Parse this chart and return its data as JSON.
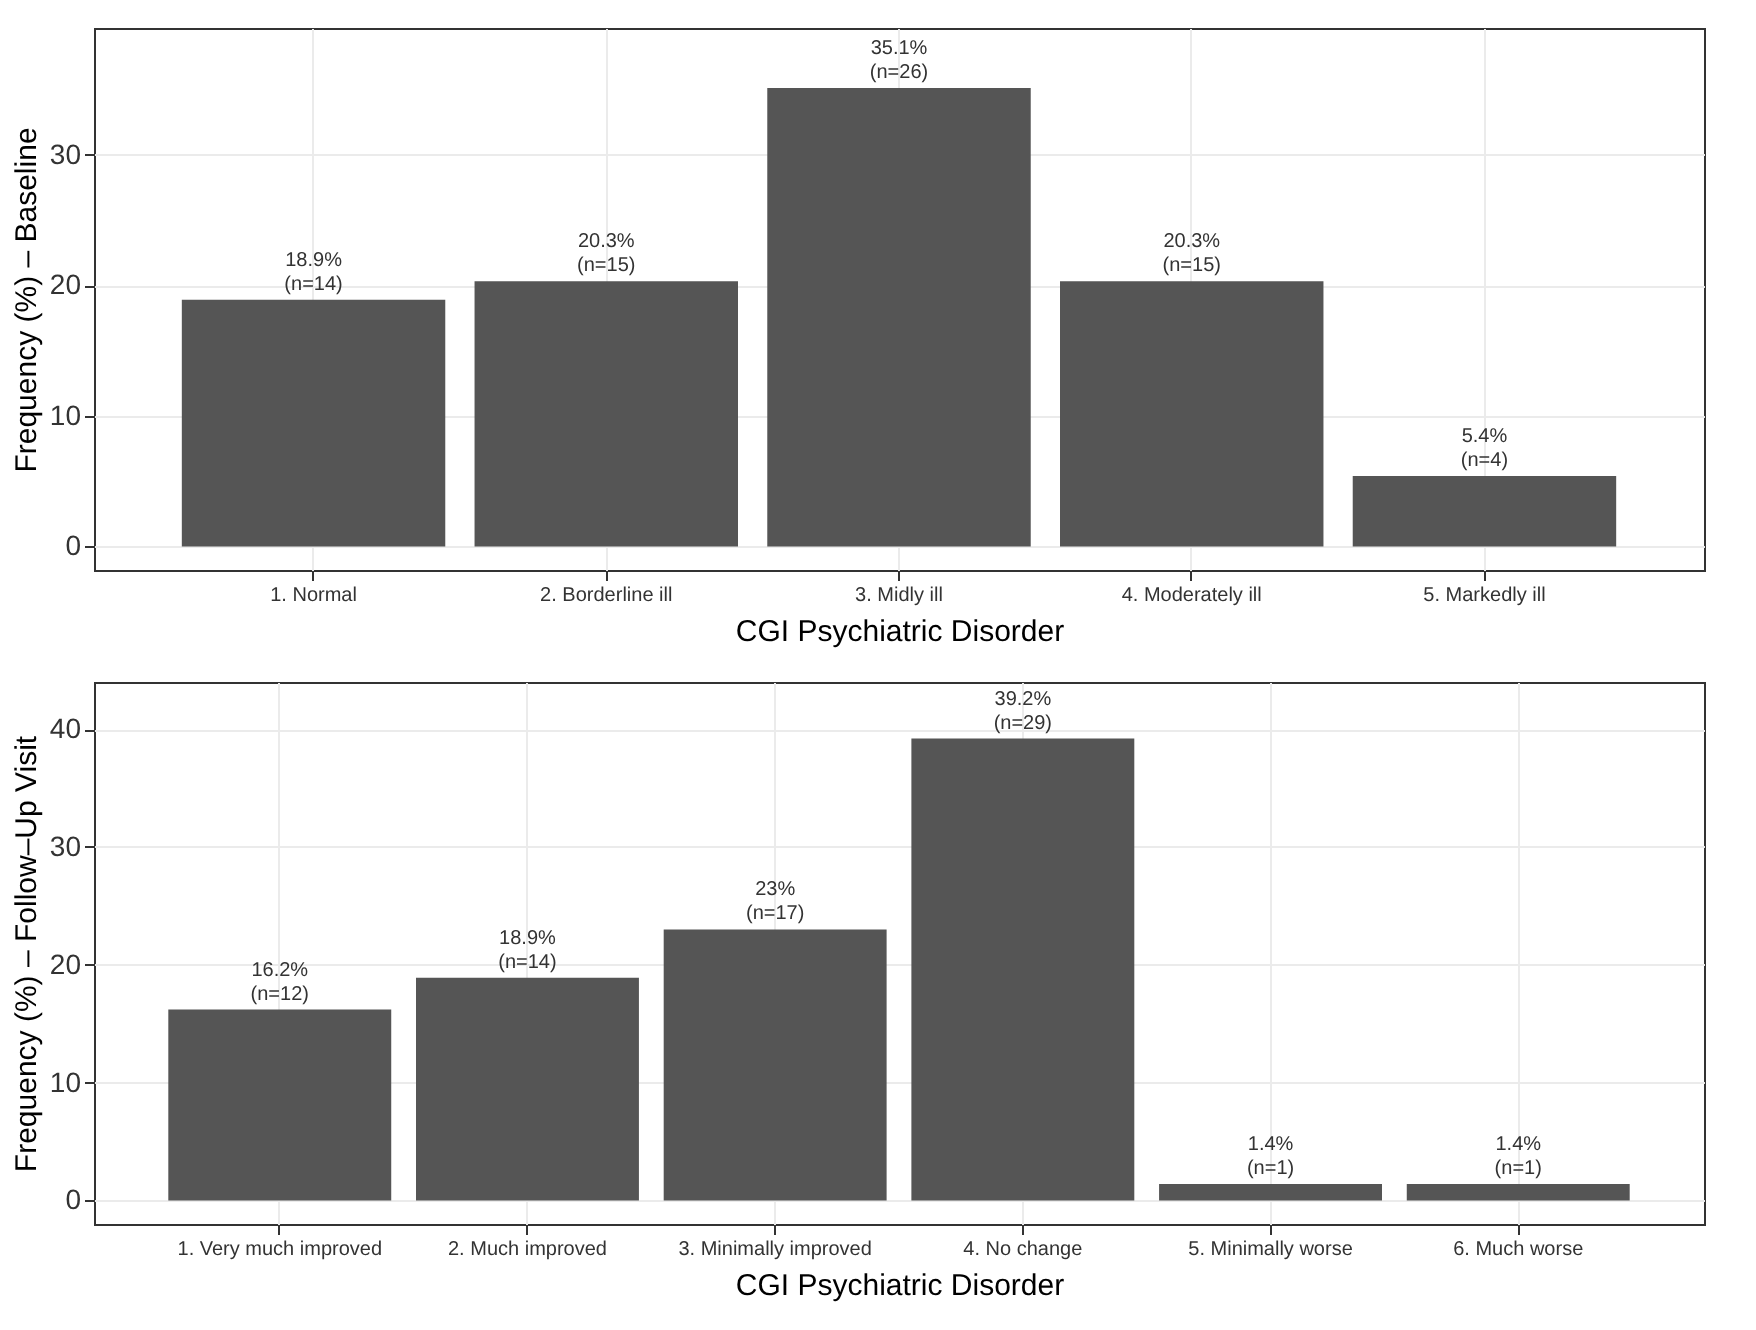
{
  "chart_data": [
    {
      "type": "bar",
      "xlabel": "CGI Psychiatric Disorder",
      "ylabel": "Frequency (%) – Baseline",
      "categories": [
        "1. Normal",
        "2. Borderline ill",
        "3. Midly ill",
        "4. Moderately ill",
        "5. Markedly ill"
      ],
      "values": [
        18.9,
        20.3,
        35.1,
        20.3,
        5.4
      ],
      "color": "#555555",
      "value_labels": [
        "18.9%\n(n=14)",
        "20.3%\n(n=15)",
        "35.1%\n(n=26)",
        "20.3%\n(n=15)",
        "5.4%\n(n=4)"
      ],
      "ylim": [
        -1.8,
        39.7
      ],
      "yticks": [
        0,
        10,
        20,
        30
      ],
      "grid": true
    },
    {
      "type": "bar",
      "xlabel": "CGI Psychiatric Disorder",
      "ylabel": "Frequency (%) – Follow–Up Visit",
      "categories": [
        "1. Very much improved",
        "2. Much improved",
        "3. Minimally improved",
        "4. No change",
        "5. Minimally worse",
        "6. Much worse"
      ],
      "values": [
        16.2,
        18.9,
        23,
        39.2,
        1.4,
        1.4
      ],
      "color": "#555555",
      "value_labels": [
        "16.2%\n(n=12)",
        "18.9%\n(n=14)",
        "23%\n(n=17)",
        "39.2%\n(n=29)",
        "1.4%\n(n=1)",
        "1.4%\n(n=1)"
      ],
      "ylim": [
        -2,
        44
      ],
      "yticks": [
        0,
        10,
        20,
        30,
        40
      ],
      "grid": true
    }
  ]
}
